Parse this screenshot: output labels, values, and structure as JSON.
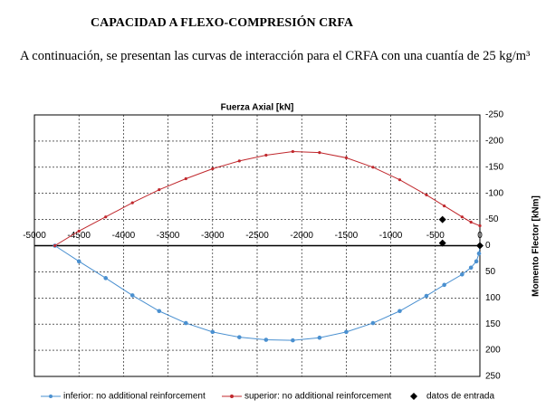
{
  "header": {
    "title": "CAPACIDAD A FLEXO-COMPRESIÓN CRFA"
  },
  "paragraph": "A continuación, se presentan las curvas de interacción para el CRFA con una cuantía de 25 kg/m³",
  "chart_data": {
    "type": "line",
    "x_label": "Fuerza Axial  [kN]",
    "y_label": "Momento Flector [kNm]",
    "xlim": [
      -5000,
      0
    ],
    "xticks": [
      -5000,
      -4500,
      -4000,
      -3500,
      -3000,
      -2500,
      -2000,
      -1500,
      -1000,
      -500,
      0
    ],
    "ylim": [
      -250,
      250
    ],
    "y_inverted": true,
    "yticks": [
      -250,
      -200,
      -150,
      -100,
      -50,
      0,
      50,
      100,
      150,
      200,
      250
    ],
    "grid": true,
    "series": [
      {
        "name": "inferior: no additional reinforcement",
        "color": "#4a90d0",
        "marker": "circle",
        "x": [
          -4770,
          -4500,
          -4200,
          -3900,
          -3600,
          -3300,
          -3000,
          -2700,
          -2400,
          -2100,
          -1800,
          -1500,
          -1200,
          -900,
          -600,
          -400,
          -200,
          -100,
          -40,
          -10,
          0
        ],
        "values": [
          0,
          30,
          62,
          95,
          125,
          148,
          165,
          175,
          180,
          181,
          176,
          165,
          148,
          125,
          96,
          75,
          55,
          42,
          30,
          15,
          0
        ]
      },
      {
        "name": "superior: no additional reinforcement",
        "color": "#c0282d",
        "marker": "dot",
        "x": [
          -4770,
          -4500,
          -4200,
          -3900,
          -3600,
          -3300,
          -3000,
          -2700,
          -2400,
          -2100,
          -1800,
          -1500,
          -1200,
          -900,
          -600,
          -400,
          -200,
          -100,
          0
        ],
        "values": [
          0,
          -28,
          -55,
          -82,
          -107,
          -128,
          -147,
          -162,
          -173,
          -180,
          -178,
          -168,
          -150,
          -126,
          -97,
          -76,
          -55,
          -45,
          -38
        ]
      },
      {
        "name": "datos de entrada",
        "color": "#000000",
        "marker": "diamond",
        "scatter": true,
        "x": [
          -420,
          -420,
          0
        ],
        "values": [
          -50,
          -5,
          0
        ]
      }
    ]
  }
}
